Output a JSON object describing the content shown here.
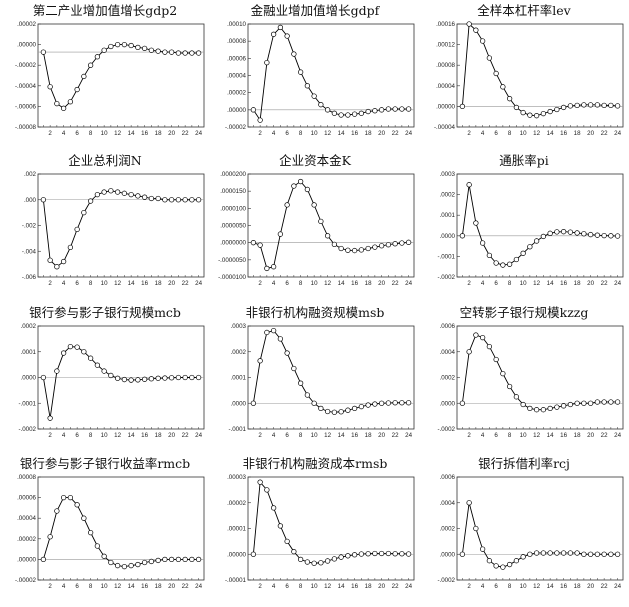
{
  "chart_data": [
    {
      "type": "line",
      "title": "第二产业增加值增长gdp2",
      "yticks": [
        "00002",
        "00000",
        "-00002",
        "-00004",
        "-00006",
        "-00008"
      ],
      "ylim": [
        -8e-05,
        3e-05
      ],
      "xticks": [
        "2",
        "4",
        "6",
        "8",
        "10",
        "12",
        "14",
        "16",
        "18",
        "20",
        "22",
        "24"
      ],
      "series": [
        {
          "values": [
            0.0,
            -3.7e-05,
            -5.5e-05,
            -6e-05,
            -5.3e-05,
            -4e-05,
            -2.6e-05,
            -1.4e-05,
            -5e-06,
            2e-06,
            6e-06,
            8e-06,
            8e-06,
            7e-06,
            5e-06,
            4e-06,
            2e-06,
            1e-06,
            0.0,
            0.0,
            -1e-06,
            -1e-06,
            -1e-06,
            -1e-06
          ]
        }
      ]
    },
    {
      "type": "line",
      "title": "金融业增加值增长gdpf",
      "yticks": [
        "00010",
        "00008",
        "00006",
        "00004",
        "00002",
        "00000",
        "-00002"
      ],
      "ylim": [
        -2e-05,
        0.0001
      ],
      "xticks": [
        "2",
        "4",
        "6",
        "8",
        "10",
        "12",
        "14",
        "16",
        "18",
        "20",
        "22",
        "24"
      ],
      "series": [
        {
          "values": [
            0.0,
            -1.2e-05,
            5.5e-05,
            8.8e-05,
            9.6e-05,
            8.6e-05,
            6.5e-05,
            4.4e-05,
            2.8e-05,
            1.6e-05,
            6e-06,
            0.0,
            -4e-06,
            -6e-06,
            -6e-06,
            -5e-06,
            -4e-06,
            -2e-06,
            -1e-06,
            0.0,
            1e-06,
            1e-06,
            1e-06,
            1e-06
          ]
        }
      ]
    },
    {
      "type": "line",
      "title": "全样本杠杆率lev",
      "yticks": [
        "00016",
        "00012",
        "00008",
        "00004",
        "00000",
        "-00004"
      ],
      "ylim": [
        -4e-05,
        0.00016
      ],
      "xticks": [
        "2",
        "4",
        "6",
        "8",
        "10",
        "12",
        "14",
        "16",
        "18",
        "20",
        "22",
        "24"
      ],
      "series": [
        {
          "values": [
            0.0,
            0.00016,
            0.000148,
            0.000127,
            9.4e-05,
            6.4e-05,
            3.8e-05,
            1.5e-05,
            -2e-06,
            -1.2e-05,
            -1.7e-05,
            -1.8e-05,
            -1.4e-05,
            -1e-05,
            -6e-06,
            -2e-06,
            1e-06,
            2e-06,
            3e-06,
            3e-06,
            3e-06,
            2e-06,
            2e-06,
            1e-06
          ]
        }
      ]
    },
    {
      "type": "line",
      "title": "企业总利润N",
      "yticks": [
        "002",
        "000",
        "-002",
        "-004",
        "-006"
      ],
      "ylim": [
        -0.006,
        0.002
      ],
      "xticks": [
        "2",
        "4",
        "6",
        "8",
        "10",
        "12",
        "14",
        "16",
        "18",
        "20",
        "22",
        "24"
      ],
      "series": [
        {
          "values": [
            0.0,
            -0.0047,
            -0.0052,
            -0.0048,
            -0.0037,
            -0.0023,
            -0.001,
            -0.0001,
            0.0004,
            0.0006,
            0.0007,
            0.0006,
            0.0005,
            0.0004,
            0.0003,
            0.0002,
            0.0001,
            0.0001,
            0.0,
            0.0,
            0.0,
            0.0,
            0.0,
            0.0
          ]
        }
      ]
    },
    {
      "type": "line",
      "title": "企业资本金K",
      "yticks": [
        "0000200",
        "0000150",
        "0000100",
        "0000050",
        "0000000",
        "-0000050",
        "-0000100"
      ],
      "ylim": [
        -1e-05,
        2e-05
      ],
      "xticks": [
        "2",
        "4",
        "6",
        "8",
        "10",
        "12",
        "14",
        "16",
        "18",
        "20",
        "22",
        "24"
      ],
      "series": [
        {
          "values": [
            0.0,
            -7e-07,
            -7.5e-06,
            -7e-06,
            2.5e-06,
            1.1e-05,
            1.65e-05,
            1.78e-05,
            1.55e-05,
            1.1e-05,
            6.2e-06,
            2e-06,
            -5e-07,
            -1.7e-06,
            -2.2e-06,
            -2.3e-06,
            -2.1e-06,
            -1.7e-06,
            -1.3e-06,
            -9e-07,
            -6e-07,
            -3e-07,
            -1e-07,
            1e-07
          ]
        }
      ]
    },
    {
      "type": "line",
      "title": "通胀率pi",
      "yticks": [
        "0003",
        "0002",
        "0001",
        "0000",
        "-0001",
        "-0002"
      ],
      "ylim": [
        -0.0002,
        0.0003
      ],
      "xticks": [
        "2",
        "4",
        "6",
        "8",
        "10",
        "12",
        "14",
        "16",
        "18",
        "20",
        "22",
        "24"
      ],
      "series": [
        {
          "values": [
            0.0,
            0.000248,
            6.2e-05,
            -3.5e-05,
            -9.5e-05,
            -0.000132,
            -0.000142,
            -0.000138,
            -0.000115,
            -8.5e-05,
            -5.3e-05,
            -2.5e-05,
            -3e-06,
            1.2e-05,
            1.9e-05,
            2e-05,
            1.8e-05,
            1.4e-05,
            1e-05,
            6e-06,
            3e-06,
            1e-06,
            0.0,
            -1e-06
          ]
        }
      ]
    },
    {
      "type": "line",
      "title": "银行参与影子银行规模mcb",
      "yticks": [
        "0002",
        "0001",
        "0000",
        "-0001",
        "-0002"
      ],
      "ylim": [
        -0.0002,
        0.0002
      ],
      "xticks": [
        "2",
        "4",
        "6",
        "8",
        "10",
        "12",
        "14",
        "16",
        "18",
        "20",
        "22",
        "24"
      ],
      "series": [
        {
          "values": [
            0.0,
            -0.000158,
            2.5e-05,
            9.5e-05,
            0.00012,
            0.000118,
            0.0001,
            7.5e-05,
            4.8e-05,
            2.5e-05,
            8e-06,
            -3e-06,
            -8e-06,
            -1e-05,
            -9e-06,
            -7e-06,
            -5e-06,
            -3e-06,
            -2e-06,
            -1e-06,
            0.0,
            0.0,
            0.0,
            0.0
          ]
        }
      ]
    },
    {
      "type": "line",
      "title": "非银行机构融资规模msb",
      "yticks": [
        "0003",
        "0002",
        "0001",
        "0000",
        "-0001"
      ],
      "ylim": [
        -0.0001,
        0.0003
      ],
      "xticks": [
        "2",
        "4",
        "6",
        "8",
        "10",
        "12",
        "14",
        "16",
        "18",
        "20",
        "22",
        "24"
      ],
      "series": [
        {
          "values": [
            0.0,
            0.000165,
            0.000275,
            0.000282,
            0.00025,
            0.000195,
            0.000135,
            7.8e-05,
            3.2e-05,
            0.0,
            -2e-05,
            -3.2e-05,
            -3.5e-05,
            -3.3e-05,
            -2.7e-05,
            -2e-05,
            -1.3e-05,
            -7e-06,
            -3e-06,
            0.0,
            1e-06,
            2e-06,
            2e-06,
            2e-06
          ]
        }
      ]
    },
    {
      "type": "line",
      "title": "空转影子银行规模kzzg",
      "yticks": [
        "0006",
        "0004",
        "0002",
        "0000",
        "-0002"
      ],
      "ylim": [
        -0.0002,
        0.0006
      ],
      "xticks": [
        "2",
        "4",
        "6",
        "8",
        "10",
        "12",
        "14",
        "16",
        "18",
        "20",
        "22",
        "24"
      ],
      "series": [
        {
          "values": [
            0.0,
            0.0004,
            0.00053,
            0.00051,
            0.00044,
            0.00034,
            0.00023,
            0.00013,
            5e-05,
            -1e-05,
            -4e-05,
            -5e-05,
            -5e-05,
            -4e-05,
            -3e-05,
            -2e-05,
            -1e-05,
            0.0,
            0.0,
            0.0,
            1e-05,
            1e-05,
            1e-05,
            1e-05
          ]
        }
      ]
    },
    {
      "type": "line",
      "title": "银行参与影子银行收益率rmcb",
      "yticks": [
        "00008",
        "00006",
        "00004",
        "00002",
        "00000",
        "-00002"
      ],
      "ylim": [
        -2e-05,
        8e-05
      ],
      "xticks": [
        "2",
        "4",
        "6",
        "8",
        "10",
        "12",
        "14",
        "16",
        "18",
        "20",
        "22",
        "24"
      ],
      "series": [
        {
          "values": [
            0.0,
            2.2e-05,
            4.7e-05,
            6e-05,
            6e-05,
            5.3e-05,
            4e-05,
            2.6e-05,
            1.3e-05,
            3e-06,
            -3e-06,
            -6e-06,
            -7e-06,
            -6e-06,
            -5e-06,
            -3e-06,
            -2e-06,
            -1e-06,
            0.0,
            0.0,
            0.0,
            0.0,
            0.0,
            0.0
          ]
        }
      ]
    },
    {
      "type": "line",
      "title": "非银行机构融资成本rmsb",
      "yticks": [
        "00003",
        "00002",
        "00001",
        "00000",
        "-00001"
      ],
      "ylim": [
        -1e-05,
        3e-05
      ],
      "xticks": [
        "2",
        "4",
        "6",
        "8",
        "10",
        "12",
        "14",
        "16",
        "18",
        "20",
        "22",
        "24"
      ],
      "series": [
        {
          "values": [
            0.0,
            2.8e-05,
            2.5e-05,
            1.8e-05,
            1.1e-05,
            5e-06,
            1e-06,
            -2e-06,
            -3e-06,
            -3.5e-06,
            -3.3e-06,
            -2.6e-06,
            -1.8e-06,
            -1.1e-06,
            -6e-07,
            -2e-07,
            1e-07,
            2e-07,
            3e-07,
            3e-07,
            3e-07,
            2e-07,
            2e-07,
            1e-07
          ]
        }
      ]
    },
    {
      "type": "line",
      "title": "银行拆借利率rcj",
      "yticks": [
        "0006",
        "0004",
        "0002",
        "0000",
        "-0002"
      ],
      "ylim": [
        -0.0002,
        0.0006
      ],
      "xticks": [
        "2",
        "4",
        "6",
        "8",
        "10",
        "12",
        "14",
        "16",
        "18",
        "20",
        "22",
        "24"
      ],
      "series": [
        {
          "values": [
            0.0,
            0.0004,
            0.0002,
            4e-05,
            -5e-05,
            -9e-05,
            -0.0001,
            -8e-05,
            -5e-05,
            -2e-05,
            0.0,
            1e-05,
            1e-05,
            1e-05,
            1e-05,
            1e-05,
            1e-05,
            1e-05,
            0.0,
            0.0,
            0.0,
            0.0,
            0.0,
            0.0
          ]
        }
      ]
    }
  ]
}
